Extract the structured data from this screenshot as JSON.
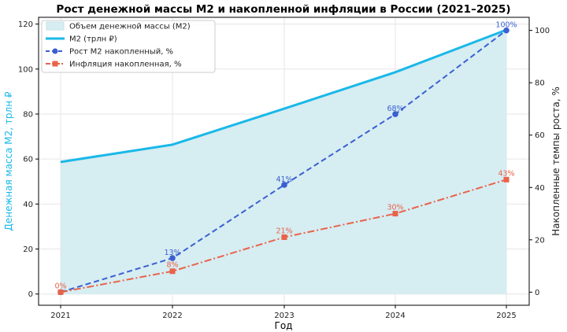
{
  "colors": {
    "area": "#d6edf2",
    "m2": "#1ab8e8",
    "growth": "#3b5fd1",
    "inflation": "#e9634a",
    "left_axis": "#1ab8e8",
    "grid": "#e6e6e6"
  },
  "chart_data": {
    "type": "line",
    "title": "Рост денежной массы М2 и накопленной инфляции в России (2021–2025)",
    "xlabel": "Год",
    "ylabel_left": "Денежная масса М2, трлн ₽",
    "ylabel_right": "Накопленные темпы роста, %",
    "categories": [
      "2021",
      "2022",
      "2023",
      "2024",
      "2025"
    ],
    "ylim_left": [
      -5,
      123
    ],
    "ylim_right": [
      -5,
      105
    ],
    "yticks_left": [
      "0",
      "20",
      "40",
      "60",
      "80",
      "100",
      "120"
    ],
    "yticks_right": [
      "0",
      "20",
      "40",
      "60",
      "80",
      "100"
    ],
    "grid": true,
    "legend_position": "top-left",
    "series": [
      {
        "name": "Объем денежной массы (М2)",
        "kind": "area",
        "axis": "left",
        "values": [
          58.7,
          66.4,
          82.4,
          98.6,
          117.4
        ]
      },
      {
        "name": "М2 (трлн ₽)",
        "kind": "line",
        "axis": "left",
        "values": [
          58.7,
          66.4,
          82.4,
          98.6,
          117.4
        ]
      },
      {
        "name": "Рост М2 накопленный, %",
        "kind": "dashed",
        "axis": "right",
        "values": [
          0,
          13,
          41,
          68,
          100
        ],
        "labels": [
          "",
          "13%",
          "41%",
          "68%",
          "100%"
        ]
      },
      {
        "name": "Инфляция накопленная, %",
        "kind": "dashdot",
        "axis": "right",
        "values": [
          0,
          8,
          21,
          30,
          43
        ],
        "labels": [
          "0%",
          "8%",
          "21%",
          "30%",
          "43%"
        ]
      }
    ]
  }
}
